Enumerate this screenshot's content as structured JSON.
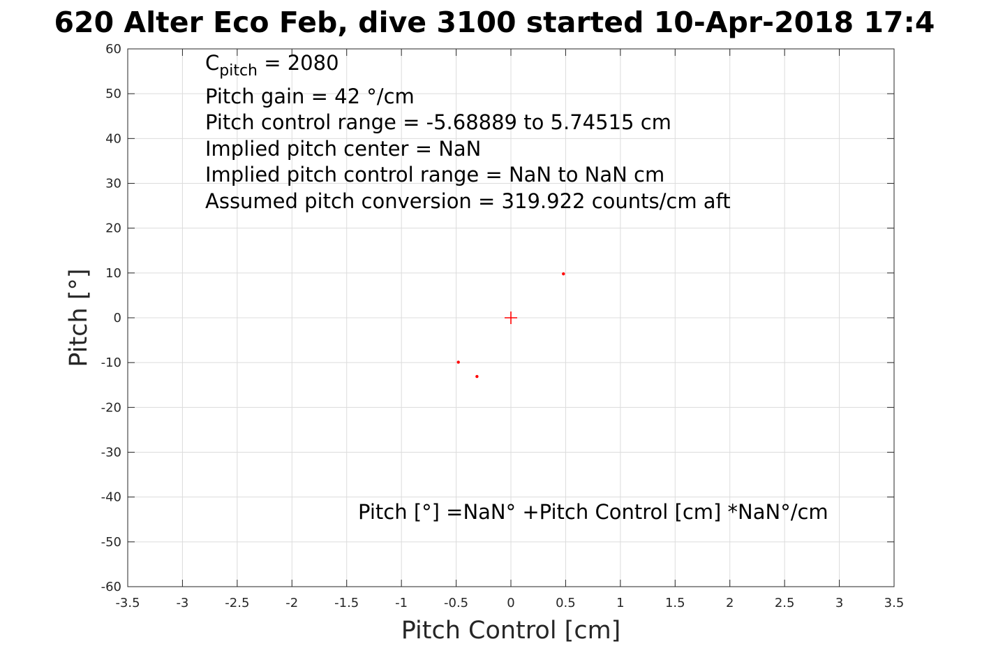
{
  "chart_data": {
    "type": "scatter",
    "title": "620 Alter Eco Feb, dive 3100 started 10-Apr-2018 17:4",
    "xlabel": "Pitch Control [cm]",
    "ylabel": "Pitch [°]",
    "xlim": [
      -3.5,
      3.5
    ],
    "ylim": [
      -60,
      60
    ],
    "xticks": [
      -3.5,
      -3,
      -2.5,
      -2,
      -1.5,
      -1,
      -0.5,
      0,
      0.5,
      1,
      1.5,
      2,
      2.5,
      3,
      3.5
    ],
    "yticks": [
      60,
      50,
      40,
      30,
      20,
      10,
      0,
      -10,
      -20,
      -30,
      -40,
      -50,
      -60
    ],
    "grid": true,
    "color": "#ff0000",
    "points": [
      {
        "x": 0.48,
        "y": 9.8
      },
      {
        "x": -0.48,
        "y": -9.9
      },
      {
        "x": -0.31,
        "y": -13.1
      }
    ],
    "center_marker": {
      "x": 0,
      "y": 0,
      "symbol": "+"
    },
    "annotations": {
      "c_pitch_symbol": "C",
      "c_pitch_sub": "pitch",
      "c_pitch_value": " = 2080",
      "line2": "Pitch gain = 42 °/cm",
      "line3": "Pitch control range = -5.68889 to 5.74515 cm",
      "line4": "Implied pitch center = NaN",
      "line5": "Implied pitch control range = NaN to NaN cm",
      "line6": "Assumed pitch conversion = 319.922 counts/cm aft",
      "fit": "Pitch [°] =NaN° +Pitch Control [cm] *NaN°/cm"
    }
  }
}
